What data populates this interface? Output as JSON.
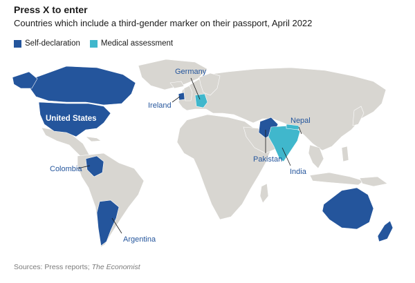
{
  "title": "Press X to enter",
  "subtitle": "Countries which include a third-gender marker on their passport, April 2022",
  "legend": {
    "self_declaration": "Self-declaration",
    "medical_assessment": "Medical assessment"
  },
  "colors": {
    "self_declaration": "#24559c",
    "medical_assessment": "#40b7cc",
    "land": "#d8d6d1",
    "border": "#ffffff"
  },
  "labels": {
    "united_states": "United States",
    "germany": "Germany",
    "ireland": "Ireland",
    "nepal": "Nepal",
    "pakistan": "Pakistan",
    "india": "India",
    "colombia": "Colombia",
    "argentina": "Argentina"
  },
  "source": {
    "prefix": "Sources: Press reports; ",
    "publication": "The Economist"
  }
}
